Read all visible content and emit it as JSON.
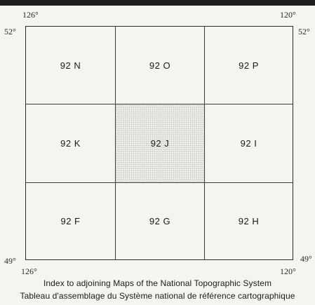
{
  "coordinates": {
    "top_left_longitude": "126°",
    "top_right_longitude": "120°",
    "bottom_left_longitude": "126°",
    "bottom_right_longitude": "120°",
    "left_top_latitude": "52°",
    "right_top_latitude": "52°",
    "left_bottom_latitude": "49°",
    "right_bottom_latitude": "49°"
  },
  "sheets": [
    {
      "label": "92 N",
      "highlighted": false
    },
    {
      "label": "92 O",
      "highlighted": false
    },
    {
      "label": "92 P",
      "highlighted": false
    },
    {
      "label": "92 K",
      "highlighted": false
    },
    {
      "label": "92 J",
      "highlighted": true
    },
    {
      "label": "92 I",
      "highlighted": false
    },
    {
      "label": "92 F",
      "highlighted": false
    },
    {
      "label": "92 G",
      "highlighted": false
    },
    {
      "label": "92 H",
      "highlighted": false
    }
  ],
  "caption": {
    "english": "Index to adjoining Maps of the National Topographic System",
    "french": "Tableau d'assemblage du Système national de référence cartographique"
  },
  "colors": {
    "background": "#f4f4f1",
    "lines": "#2a2a2a",
    "top_bar": "#1e1e1e"
  }
}
